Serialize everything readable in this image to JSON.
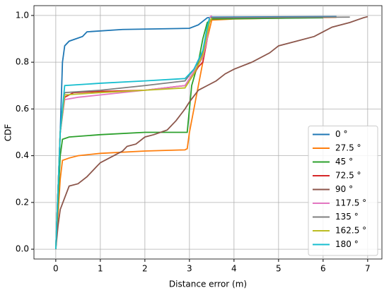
{
  "chart_data": {
    "type": "line",
    "x_label": "Distance error (m)",
    "y_label": "CDF",
    "xlim": [
      -0.49,
      7.32
    ],
    "ylim": [
      -0.042,
      1.042
    ],
    "xticks": [
      0,
      1,
      2,
      3,
      4,
      5,
      6,
      7
    ],
    "yticks": [
      {
        "value": 0,
        "label": "0.0"
      },
      0.2,
      0.4,
      0.6,
      0.8,
      {
        "value": 1,
        "label": "1.0"
      }
    ],
    "grid": true,
    "legend": "lower right",
    "series": [
      {
        "name": "0 °",
        "color": "#1f77b4",
        "x": [
          0,
          0.1,
          0.15,
          0.2,
          0.3,
          0.6,
          0.7,
          1.5,
          3.0,
          3.2,
          3.4,
          3.5,
          6.3
        ],
        "values": [
          0,
          0.5,
          0.8,
          0.87,
          0.89,
          0.91,
          0.93,
          0.94,
          0.945,
          0.96,
          0.99,
          0.993,
          0.995
        ]
      },
      {
        "name": "27.5 °",
        "color": "#ff7f0e",
        "x": [
          0,
          0.1,
          0.15,
          0.3,
          0.5,
          1,
          2,
          2.9,
          2.95,
          3.0,
          3.1,
          3.2,
          3.3,
          3.4,
          3.5,
          4,
          5.5,
          6.3
        ],
        "values": [
          0,
          0.3,
          0.38,
          0.39,
          0.4,
          0.41,
          0.42,
          0.425,
          0.43,
          0.5,
          0.6,
          0.7,
          0.8,
          0.9,
          0.98,
          0.985,
          0.99,
          0.992
        ]
      },
      {
        "name": "45 °",
        "color": "#2ca02c",
        "x": [
          0,
          0.1,
          0.15,
          0.3,
          1,
          2,
          2.95,
          3.0,
          3.05,
          3.2,
          3.3,
          3.4,
          3.5,
          6.0
        ],
        "values": [
          0,
          0.4,
          0.47,
          0.48,
          0.49,
          0.5,
          0.5,
          0.6,
          0.7,
          0.8,
          0.9,
          0.97,
          0.985,
          0.99
        ]
      },
      {
        "name": "72.5 °",
        "color": "#d62728",
        "x": [
          0,
          0.1,
          0.2,
          0.4,
          1,
          2,
          2.9,
          3.1,
          3.2,
          3.3,
          3.4,
          3.45
        ],
        "values": [
          0,
          0.5,
          0.65,
          0.67,
          0.675,
          0.68,
          0.7,
          0.75,
          0.78,
          0.8,
          0.9,
          0.99
        ]
      },
      {
        "name": "90 °",
        "color": "#8c564b",
        "x": [
          0,
          0.05,
          0.1,
          0.2,
          0.3,
          0.5,
          0.7,
          0.9,
          1,
          1.2,
          1.4,
          1.5,
          1.6,
          1.8,
          2.0,
          2.2,
          2.5,
          2.7,
          2.9,
          3.0,
          3.2,
          3.4,
          3.6,
          3.8,
          4.0,
          4.4,
          4.8,
          5.0,
          5.4,
          5.8,
          6.0,
          6.2,
          6.6,
          6.9,
          7.0
        ],
        "values": [
          0,
          0.1,
          0.17,
          0.22,
          0.27,
          0.28,
          0.31,
          0.35,
          0.37,
          0.39,
          0.41,
          0.42,
          0.44,
          0.45,
          0.48,
          0.49,
          0.51,
          0.55,
          0.6,
          0.63,
          0.68,
          0.7,
          0.72,
          0.75,
          0.77,
          0.8,
          0.84,
          0.87,
          0.89,
          0.91,
          0.93,
          0.95,
          0.97,
          0.99,
          0.995
        ]
      },
      {
        "name": "117.5 °",
        "color": "#e377c2",
        "x": [
          0,
          0.1,
          0.2,
          0.5,
          1,
          2,
          2.9,
          3.1,
          3.3,
          3.4,
          3.45,
          3.5
        ],
        "values": [
          0,
          0.5,
          0.64,
          0.65,
          0.66,
          0.68,
          0.7,
          0.76,
          0.82,
          0.9,
          0.99,
          1.0
        ]
      },
      {
        "name": "135 °",
        "color": "#7f7f7f",
        "x": [
          0,
          0.1,
          0.2,
          1,
          2,
          2.9,
          3.1,
          3.3,
          3.4,
          3.5,
          6.6
        ],
        "values": [
          0,
          0.5,
          0.67,
          0.68,
          0.7,
          0.72,
          0.77,
          0.84,
          0.95,
          0.99,
          0.993
        ]
      },
      {
        "name": "162.5 °",
        "color": "#bcbd22",
        "x": [
          0,
          0.1,
          0.2,
          1,
          2,
          2.9,
          3.1,
          3.3,
          3.45,
          3.5
        ],
        "values": [
          0,
          0.5,
          0.66,
          0.67,
          0.68,
          0.69,
          0.75,
          0.83,
          0.97,
          0.99
        ]
      },
      {
        "name": "180 °",
        "color": "#17becf",
        "x": [
          0,
          0.1,
          0.2,
          1,
          2,
          2.9,
          3.1,
          3.3,
          3.4,
          3.45
        ],
        "values": [
          0,
          0.5,
          0.7,
          0.71,
          0.72,
          0.73,
          0.77,
          0.85,
          0.95,
          0.99
        ]
      }
    ]
  }
}
